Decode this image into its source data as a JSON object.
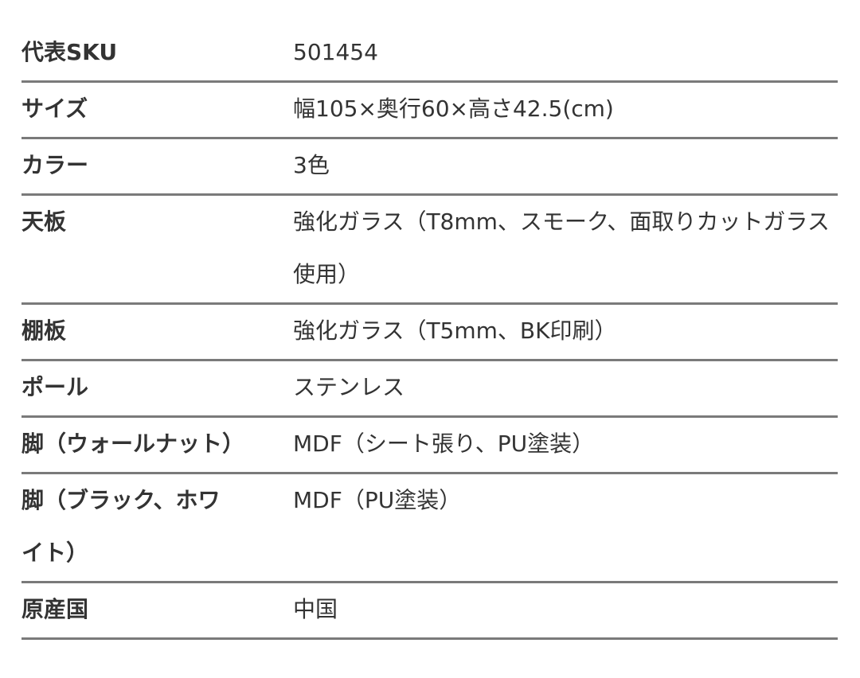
{
  "specs": [
    {
      "label": "代表SKU",
      "value": "501454"
    },
    {
      "label": "サイズ",
      "value": "幅105×奥行60×高さ42.5(cm)"
    },
    {
      "label": "カラー",
      "value": "3色"
    },
    {
      "label": "天板",
      "value": "強化ガラス（T8mm、スモーク、面取りカットガラス使用）"
    },
    {
      "label": "棚板",
      "value": "強化ガラス（T5mm、BK印刷）"
    },
    {
      "label": "ポール",
      "value": "ステンレス"
    },
    {
      "label": "脚（ウォールナット）",
      "value": "MDF（シート張り、PU塗装）"
    },
    {
      "label": "脚（ブラック、ホワイト）",
      "value": "MDF（PU塗装）"
    },
    {
      "label": "原産国",
      "value": "中国"
    }
  ]
}
